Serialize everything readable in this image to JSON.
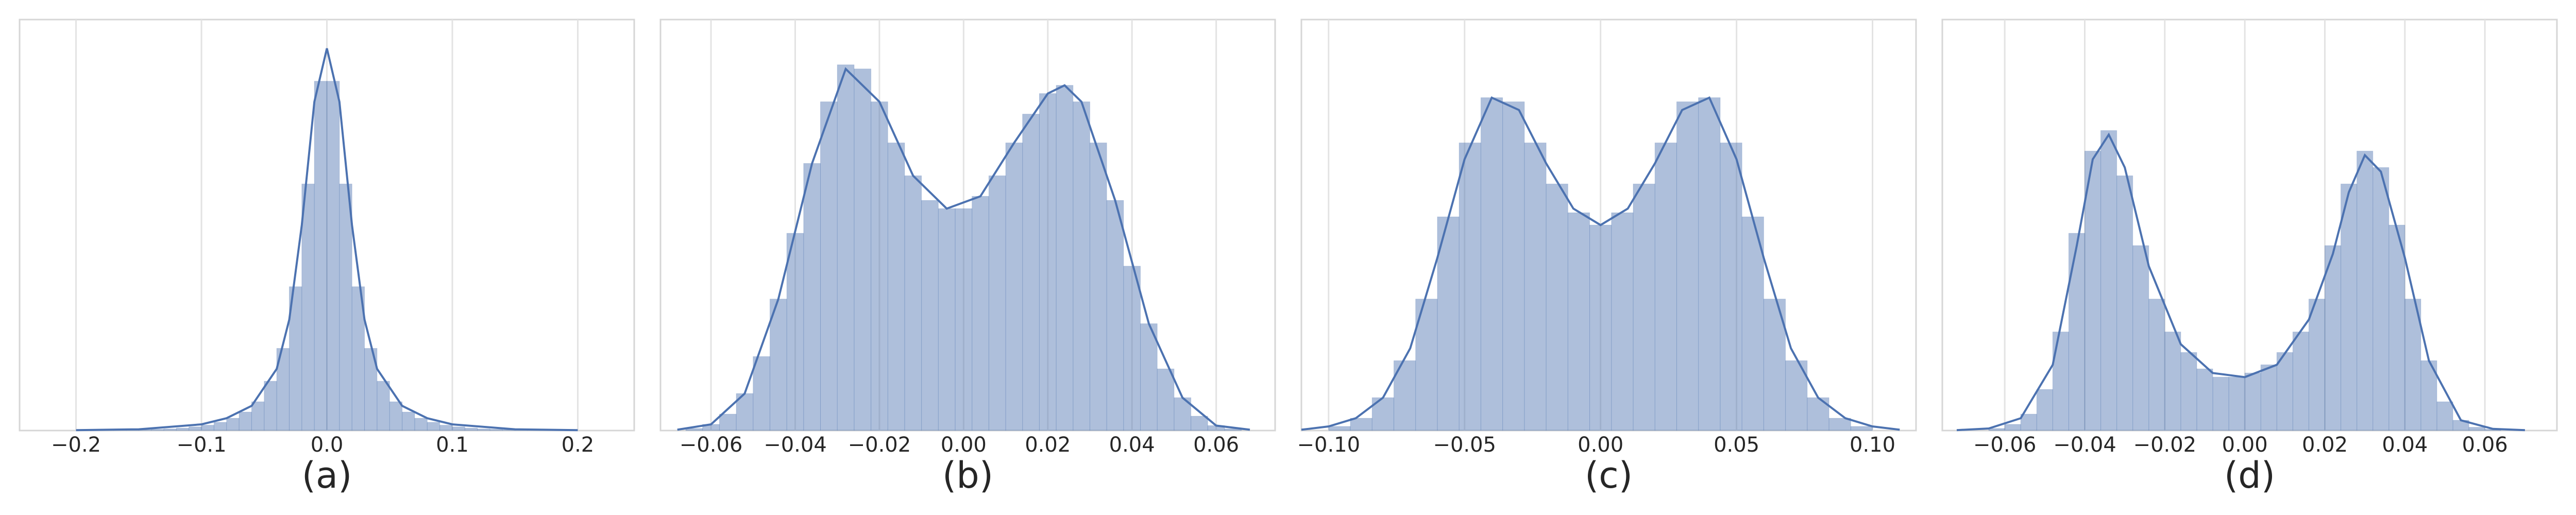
{
  "chart_data": [
    {
      "type": "histogram",
      "caption": "(a)",
      "color": "#4c72b0",
      "grid": true,
      "xlim": [
        -0.245,
        0.245
      ],
      "ylim": [
        0,
        100
      ],
      "xticks": [
        {
          "value": -0.2,
          "label": "−0.2"
        },
        {
          "value": -0.1,
          "label": "−0.1"
        },
        {
          "value": 0,
          "label": "0.0"
        },
        {
          "value": 0.1,
          "label": "0.1"
        },
        {
          "value": 0.2,
          "label": "0.2"
        }
      ],
      "bins": [
        -0.2,
        -0.19,
        -0.18,
        -0.17,
        -0.16,
        -0.15,
        -0.14,
        -0.13,
        -0.12,
        -0.11,
        -0.1,
        -0.09,
        -0.08,
        -0.07,
        -0.06,
        -0.05,
        -0.04,
        -0.03,
        -0.02,
        -0.01,
        0,
        0.01,
        0.02,
        0.03,
        0.04,
        0.05,
        0.06,
        0.07,
        0.08,
        0.09,
        0.1,
        0.11,
        0.12,
        0.13,
        0.14,
        0.15,
        0.16,
        0.17,
        0.18,
        0.19,
        0.2
      ],
      "counts": [
        0.05,
        0.05,
        0.1,
        0.1,
        0.15,
        0.2,
        0.3,
        0.4,
        0.6,
        0.9,
        1.3,
        2,
        3,
        4.5,
        7,
        12,
        20,
        35,
        60,
        85,
        85,
        60,
        35,
        20,
        12,
        7,
        4.5,
        3,
        2,
        1.3,
        0.9,
        0.6,
        0.4,
        0.3,
        0.2,
        0.15,
        0.1,
        0.1,
        0.05,
        0.05
      ],
      "kde": {
        "x": [
          -0.2,
          -0.15,
          -0.1,
          -0.08,
          -0.06,
          -0.04,
          -0.03,
          -0.02,
          -0.01,
          0,
          0.01,
          0.02,
          0.03,
          0.04,
          0.06,
          0.08,
          0.1,
          0.15,
          0.2
        ],
        "y": [
          0.1,
          0.3,
          1.5,
          3,
          6,
          15,
          27,
          50,
          80,
          93,
          80,
          50,
          27,
          15,
          6,
          3,
          1.5,
          0.3,
          0.1
        ]
      }
    },
    {
      "type": "histogram",
      "caption": "(b)",
      "color": "#4c72b0",
      "grid": true,
      "xlim": [
        -0.072,
        0.074
      ],
      "ylim": [
        0,
        100
      ],
      "xticks": [
        {
          "value": -0.06,
          "label": "−0.06"
        },
        {
          "value": -0.04,
          "label": "−0.04"
        },
        {
          "value": -0.02,
          "label": "−0.02"
        },
        {
          "value": 0,
          "label": "0.00"
        },
        {
          "value": 0.02,
          "label": "0.02"
        },
        {
          "value": 0.04,
          "label": "0.04"
        },
        {
          "value": 0.06,
          "label": "0.06"
        }
      ],
      "bins": [
        -0.066,
        -0.062,
        -0.058,
        -0.054,
        -0.05,
        -0.046,
        -0.042,
        -0.038,
        -0.034,
        -0.03,
        -0.026,
        -0.022,
        -0.018,
        -0.014,
        -0.01,
        -0.006,
        -0.002,
        0.002,
        0.006,
        0.01,
        0.014,
        0.018,
        0.022,
        0.026,
        0.03,
        0.034,
        0.038,
        0.042,
        0.046,
        0.05,
        0.054,
        0.058,
        0.062,
        0.066
      ],
      "counts": [
        0.5,
        1.5,
        4,
        9,
        18,
        32,
        48,
        65,
        80,
        89,
        88,
        80,
        70,
        62,
        56,
        54,
        54,
        57,
        62,
        70,
        77,
        82,
        84,
        80,
        70,
        56,
        40,
        26,
        15,
        8,
        3.5,
        1.2,
        0.4
      ],
      "kde": {
        "x": [
          -0.068,
          -0.06,
          -0.052,
          -0.044,
          -0.036,
          -0.028,
          -0.02,
          -0.012,
          -0.004,
          0.004,
          0.012,
          0.02,
          0.024,
          0.028,
          0.036,
          0.044,
          0.052,
          0.06,
          0.068
        ],
        "y": [
          0.2,
          1.5,
          9,
          32,
          65,
          88,
          80,
          62,
          54,
          57,
          70,
          82,
          84,
          80,
          56,
          26,
          8,
          1.2,
          0.2
        ]
      }
    },
    {
      "type": "histogram",
      "caption": "(c)",
      "color": "#4c72b0",
      "grid": true,
      "xlim": [
        -0.11,
        0.116
      ],
      "ylim": [
        0,
        100
      ],
      "xticks": [
        {
          "value": -0.1,
          "label": "−0.10"
        },
        {
          "value": -0.05,
          "label": "−0.05"
        },
        {
          "value": 0,
          "label": "0.00"
        },
        {
          "value": 0.05,
          "label": "0.05"
        },
        {
          "value": 0.1,
          "label": "0.10"
        }
      ],
      "bins": [
        -0.1,
        -0.092,
        -0.084,
        -0.076,
        -0.068,
        -0.06,
        -0.052,
        -0.044,
        -0.036,
        -0.028,
        -0.02,
        -0.012,
        -0.004,
        0.004,
        0.012,
        0.02,
        0.028,
        0.036,
        0.044,
        0.052,
        0.06,
        0.068,
        0.076,
        0.084,
        0.092,
        0.1
      ],
      "counts": [
        1,
        3,
        8,
        17,
        32,
        52,
        70,
        81,
        80,
        70,
        60,
        53,
        50,
        53,
        60,
        70,
        80,
        81,
        70,
        52,
        32,
        17,
        8,
        3,
        1
      ],
      "kde": {
        "x": [
          -0.11,
          -0.1,
          -0.09,
          -0.08,
          -0.07,
          -0.06,
          -0.05,
          -0.04,
          -0.03,
          -0.02,
          -0.01,
          0,
          0.01,
          0.02,
          0.03,
          0.04,
          0.05,
          0.06,
          0.07,
          0.08,
          0.09,
          0.1,
          0.11
        ],
        "y": [
          0.2,
          1,
          3,
          8,
          20,
          42,
          66,
          81,
          78,
          65,
          54,
          50,
          54,
          65,
          78,
          81,
          66,
          42,
          20,
          8,
          3,
          1,
          0.2
        ]
      }
    },
    {
      "type": "histogram",
      "caption": "(d)",
      "color": "#4c72b0",
      "grid": true,
      "xlim": [
        -0.0756,
        0.078
      ],
      "ylim": [
        0,
        100
      ],
      "xticks": [
        {
          "value": -0.06,
          "label": "−0.06"
        },
        {
          "value": -0.04,
          "label": "−0.04"
        },
        {
          "value": -0.02,
          "label": "−0.02"
        },
        {
          "value": 0,
          "label": "0.00"
        },
        {
          "value": 0.02,
          "label": "0.02"
        },
        {
          "value": 0.04,
          "label": "0.04"
        },
        {
          "value": 0.06,
          "label": "0.06"
        }
      ],
      "bins": [
        -0.064,
        -0.06,
        -0.056,
        -0.052,
        -0.048,
        -0.044,
        -0.04,
        -0.036,
        -0.032,
        -0.028,
        -0.024,
        -0.02,
        -0.016,
        -0.012,
        -0.008,
        -0.004,
        0,
        0.004,
        0.008,
        0.012,
        0.016,
        0.02,
        0.024,
        0.028,
        0.032,
        0.036,
        0.04,
        0.044,
        0.048,
        0.052,
        0.056,
        0.06,
        0.064
      ],
      "counts": [
        0.5,
        1.5,
        4,
        10,
        24,
        48,
        68,
        73,
        62,
        45,
        32,
        24,
        19,
        15,
        13,
        13,
        14,
        16,
        19,
        24,
        32,
        45,
        60,
        68,
        64,
        50,
        32,
        17,
        7,
        2.5,
        0.8,
        0.3
      ],
      "kde": {
        "x": [
          -0.072,
          -0.064,
          -0.056,
          -0.048,
          -0.042,
          -0.038,
          -0.034,
          -0.03,
          -0.024,
          -0.016,
          -0.008,
          0,
          0.008,
          0.016,
          0.022,
          0.026,
          0.03,
          0.034,
          0.04,
          0.046,
          0.054,
          0.062,
          0.07
        ],
        "y": [
          0.1,
          0.5,
          3,
          16,
          45,
          66,
          72,
          64,
          40,
          21,
          14,
          13,
          16,
          27,
          43,
          58,
          67,
          63,
          42,
          17,
          2.5,
          0.4,
          0.1
        ]
      }
    }
  ]
}
